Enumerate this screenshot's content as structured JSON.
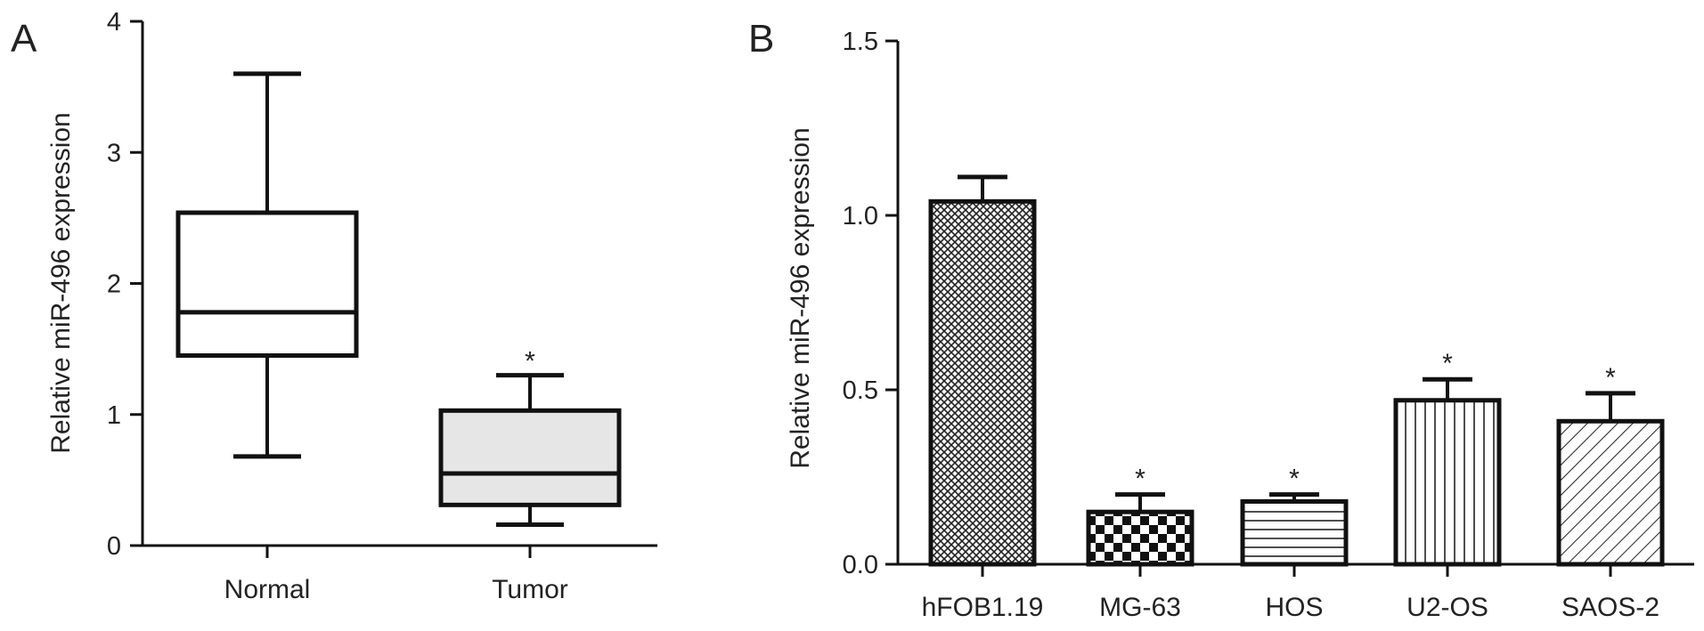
{
  "chart_data": [
    {
      "type": "box",
      "panel_label": "A",
      "ylabel": "Relative miR-496 expression",
      "ylim": [
        0,
        4
      ],
      "yticks": [
        "0",
        "1",
        "2",
        "3",
        "4"
      ],
      "categories": [
        "Normal",
        "Tumor"
      ],
      "boxes": [
        {
          "name": "Normal",
          "min": 0.68,
          "q1": 1.45,
          "median": 1.78,
          "q3": 2.54,
          "max": 3.6,
          "fill": "#ffffff",
          "annotation": ""
        },
        {
          "name": "Tumor",
          "min": 0.16,
          "q1": 0.31,
          "median": 0.55,
          "q3": 1.03,
          "max": 1.3,
          "fill": "#e6e6e6",
          "annotation": "*"
        }
      ]
    },
    {
      "type": "bar",
      "panel_label": "B",
      "ylabel": "Relative miR-496 expression",
      "ylim": [
        0,
        1.5
      ],
      "yticks": [
        "0.0",
        "0.5",
        "1.0",
        "1.5"
      ],
      "categories": [
        "hFOB1.19",
        "MG-63",
        "HOS",
        "U2-OS",
        "SAOS-2"
      ],
      "values": [
        1.04,
        0.15,
        0.18,
        0.47,
        0.41
      ],
      "errors": [
        0.07,
        0.05,
        0.02,
        0.06,
        0.08
      ],
      "annotations": [
        "",
        "*",
        "*",
        "*",
        "*"
      ],
      "patterns": [
        "crosshatch",
        "checker",
        "horizontal-lines",
        "vertical-lines",
        "diagonal-lines"
      ]
    }
  ]
}
